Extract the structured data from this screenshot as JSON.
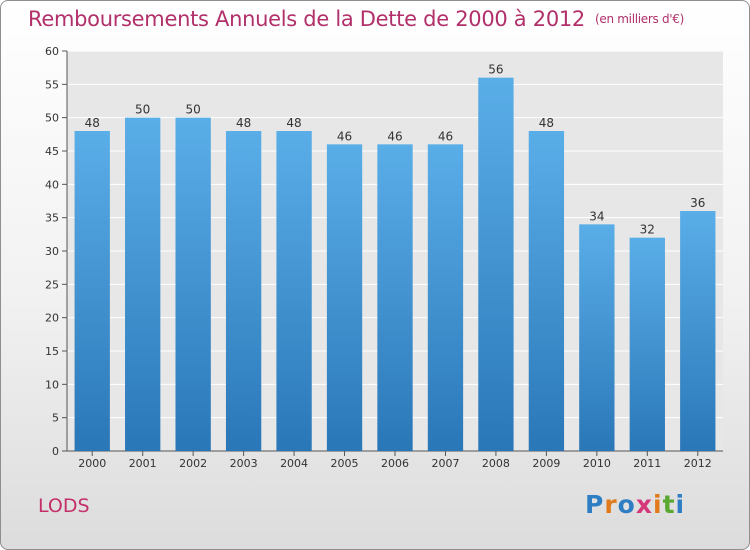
{
  "header": {
    "title": "Remboursements Annuels de la Dette de 2000 à 2012",
    "unit": "(en milliers d'€)"
  },
  "footer": {
    "city": "LODS",
    "logo_text": "Proxiti"
  },
  "colors": {
    "title": "#b1306a",
    "bar_top": "#5aaee8",
    "bar_bottom": "#2a77b8",
    "logo": [
      "#2f7ec4",
      "#e07a1a",
      "#2f7ec4",
      "#d4387a",
      "#e07a1a",
      "#5aa832",
      "#2f7ec4"
    ]
  },
  "chart_data": {
    "type": "bar",
    "categories": [
      "2000",
      "2001",
      "2002",
      "2003",
      "2004",
      "2005",
      "2006",
      "2007",
      "2008",
      "2009",
      "2010",
      "2011",
      "2012"
    ],
    "values": [
      48,
      50,
      50,
      48,
      48,
      46,
      46,
      46,
      56,
      48,
      34,
      32,
      36
    ],
    "ylim": [
      0,
      60
    ],
    "yticks": [
      0,
      5,
      10,
      15,
      20,
      25,
      30,
      35,
      40,
      45,
      50,
      55,
      60
    ],
    "grid": true
  }
}
